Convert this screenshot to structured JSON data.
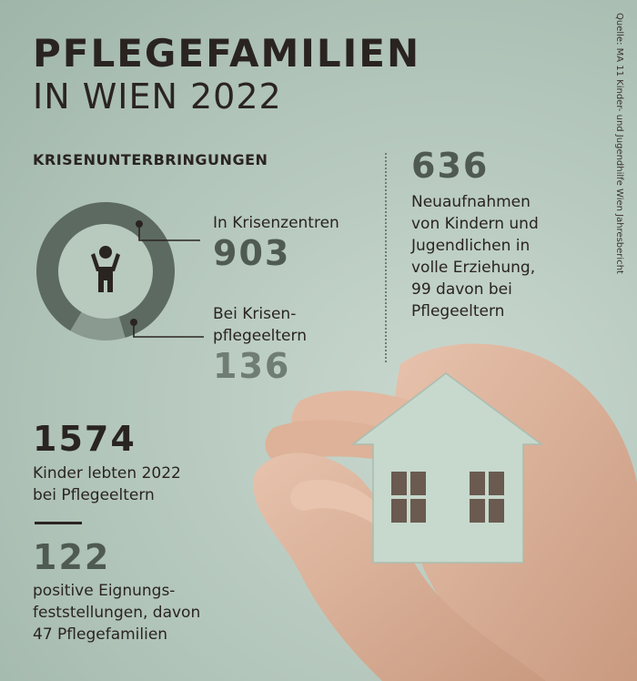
{
  "title": {
    "line1": "PFLEGEFAMILIEN",
    "line2": "IN WIEN 2022"
  },
  "source": "Quelle: MA 11 Kinder- und Jugendhilfe Wien Jahresbericht",
  "colors": {
    "dark": "#2a2420",
    "crisis_centres": "#5d6a61",
    "foster_crisis": "#8a9a90",
    "inner": "#b8c9be"
  },
  "chart_data": {
    "type": "pie",
    "title": "KRISENUNTERBRINGUNGEN",
    "categories": [
      "In Krisenzentren",
      "Bei Krisenpflegeeltern"
    ],
    "values": [
      903,
      136
    ]
  },
  "crisis": {
    "centres_label": "In Krisenzentren",
    "centres_value": "903",
    "foster_label_1": "Bei Krisen-",
    "foster_label_2": "pflegeeltern",
    "foster_value": "136"
  },
  "admissions": {
    "value": "636",
    "lines": [
      "Neuaufnahmen",
      "von Kindern und",
      "Jugendlichen in",
      "volle Erziehung,",
      "99 davon bei",
      "Pflegeeltern"
    ]
  },
  "children": {
    "value": "1574",
    "lines": [
      "Kinder lebten 2022",
      "bei Pflegeeltern"
    ]
  },
  "suitability": {
    "value": "122",
    "lines": [
      "positive Eignungs-",
      "feststellungen, davon",
      "47 Pflegefamilien"
    ]
  },
  "icons": {
    "child": "child-icon",
    "house": "house-icon"
  }
}
